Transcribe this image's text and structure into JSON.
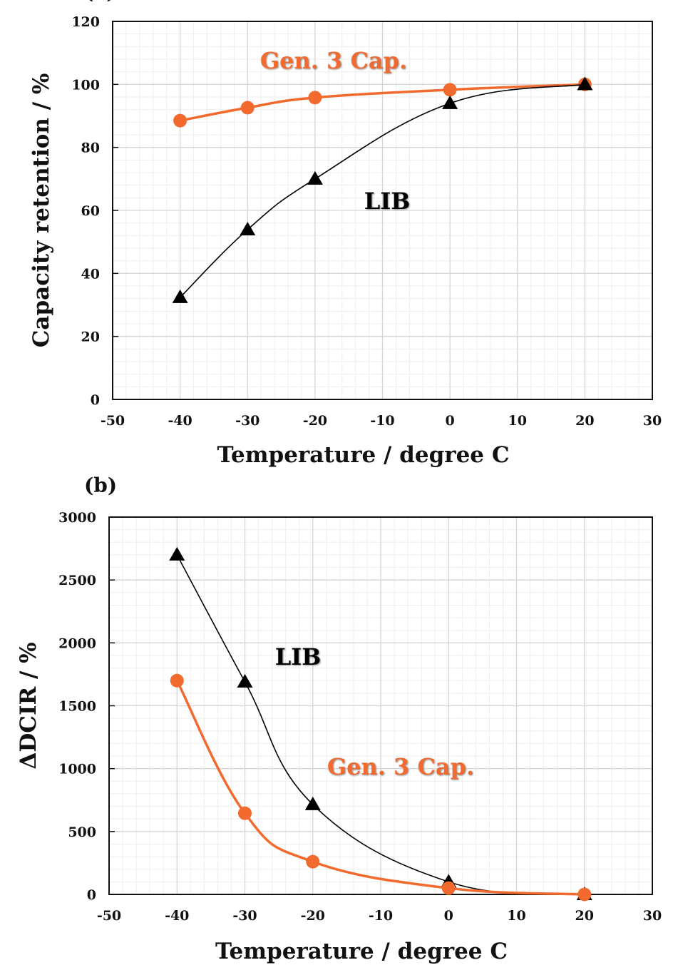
{
  "colors": {
    "gen3": "#f26a2e",
    "lib": "#000000",
    "grid_major": "#d6d6d6",
    "grid_minor": "#eeeeee"
  },
  "chart_data": [
    {
      "type": "line",
      "panel_label": "(a)",
      "xlabel": "Temperature / degree C",
      "ylabel": "Capacity retention / %",
      "xlim": [
        -50,
        30
      ],
      "ylim": [
        0,
        120
      ],
      "xticks": [
        "-50",
        "-40",
        "-30",
        "-20",
        "-10",
        "0",
        "10",
        "20",
        "30"
      ],
      "yticks": [
        "0",
        "20",
        "40",
        "60",
        "80",
        "100",
        "120"
      ],
      "grid": true,
      "x": [
        -40,
        -30,
        -20,
        0,
        20
      ],
      "series": [
        {
          "name": "Gen. 3 Cap.",
          "marker": "circle",
          "color": "#f26a2e",
          "values": [
            88.5,
            92.6,
            95.8,
            98.3,
            100
          ]
        },
        {
          "name": "LIB",
          "marker": "triangle",
          "color": "#000000",
          "values": [
            32.4,
            53.9,
            70,
            94,
            100
          ]
        }
      ],
      "annotations": [
        {
          "text": "Gen. 3 Cap.",
          "series": 0
        },
        {
          "text": "LIB",
          "series": 1
        }
      ]
    },
    {
      "type": "line",
      "panel_label": "(b)",
      "xlabel": "Temperature / degree C",
      "ylabel": "ΔDCIR / %",
      "xlim": [
        -50,
        30
      ],
      "ylim": [
        0,
        3000
      ],
      "xticks": [
        "-50",
        "-40",
        "-30",
        "-20",
        "-10",
        "0",
        "10",
        "20",
        "30"
      ],
      "yticks": [
        "0",
        "500",
        "1000",
        "1500",
        "2000",
        "2500",
        "3000"
      ],
      "grid": true,
      "x": [
        -40,
        -30,
        -20,
        0,
        20
      ],
      "series": [
        {
          "name": "LIB",
          "marker": "triangle",
          "color": "#000000",
          "values": [
            2700,
            1690,
            715,
            100,
            0
          ]
        },
        {
          "name": "Gen. 3 Cap.",
          "marker": "circle",
          "color": "#f26a2e",
          "values": [
            1700,
            645,
            260,
            50,
            0
          ]
        }
      ],
      "annotations": [
        {
          "text": "LIB",
          "series": 0
        },
        {
          "text": "Gen. 3 Cap.",
          "series": 1
        }
      ]
    }
  ]
}
